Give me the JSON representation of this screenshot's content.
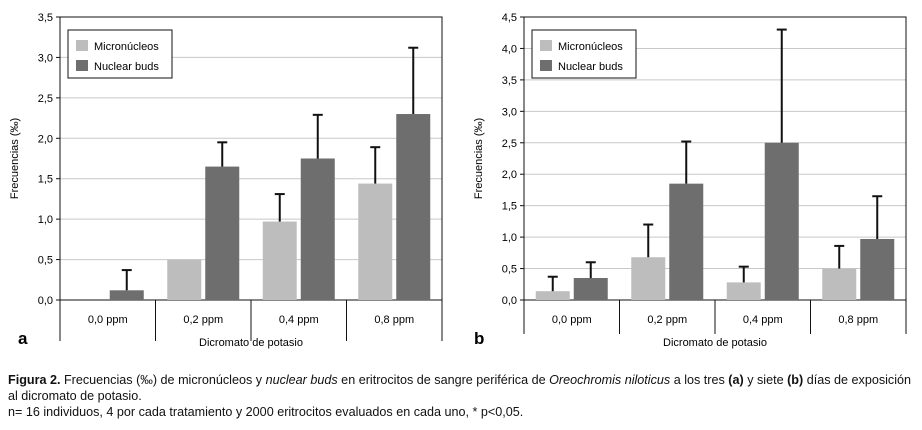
{
  "colors": {
    "micronucleos": "#bdbdbd",
    "nuclear_buds": "#6e6e6e",
    "axis": "#111111"
  },
  "chart_data": [
    {
      "type": "bar",
      "panel": "a",
      "categories": [
        "0,0 ppm",
        "0,2 ppm",
        "0,4 ppm",
        "0,8 ppm"
      ],
      "xlabel": "Dicromato de potasio",
      "ylabel": "Frecuencias (‰)",
      "ylim": [
        0,
        3.5
      ],
      "yticks": [
        "0,0",
        "0,5",
        "1,0",
        "1,5",
        "2,0",
        "2,5",
        "3,0",
        "3,5"
      ],
      "grid": true,
      "legend": "top-left",
      "series": [
        {
          "name": "Micronúcleos",
          "values": [
            0,
            0.5,
            0.97,
            1.44
          ],
          "err": [
            0,
            0,
            0.34,
            0.45
          ]
        },
        {
          "name": "Nuclear buds",
          "values": [
            0.12,
            1.65,
            1.75,
            2.3
          ],
          "err": [
            0.25,
            0.3,
            0.54,
            0.82
          ]
        }
      ]
    },
    {
      "type": "bar",
      "panel": "b",
      "categories": [
        "0,0 ppm",
        "0,2 ppm",
        "0,4 ppm",
        "0,8 ppm"
      ],
      "xlabel": "Dicromato de potasio",
      "ylabel": "Frecuencias (‰)",
      "ylim": [
        0,
        4.5
      ],
      "yticks": [
        "0,0",
        "0,5",
        "1,0",
        "1,5",
        "2,0",
        "2,5",
        "3,0",
        "3,5",
        "4,0",
        "4,5"
      ],
      "grid": true,
      "legend": "top-left",
      "series": [
        {
          "name": "Micronúcleos",
          "values": [
            0.14,
            0.68,
            0.28,
            0.5
          ],
          "err": [
            0.23,
            0.52,
            0.25,
            0.36
          ]
        },
        {
          "name": "Nuclear buds",
          "values": [
            0.35,
            1.85,
            2.5,
            0.97
          ],
          "err": [
            0.25,
            0.67,
            1.8,
            0.68
          ]
        }
      ]
    }
  ],
  "caption": {
    "figura": "Figura 2.",
    "t1": " Frecuencias (‰) de micronúcleos y ",
    "t2": "nuclear buds",
    "t3": " en eritrocitos de sangre periférica de ",
    "t4": "Oreochromis niloticus",
    "t5": " a los tres ",
    "a": "(a)",
    "t6": " y siete ",
    "b": "(b)",
    "t7": " días de exposición al dicromato de potasio.",
    "line2": "n= 16 individuos, 4 por cada tratamiento y 2000 eritrocitos evaluados en cada uno, * p<0,05."
  }
}
